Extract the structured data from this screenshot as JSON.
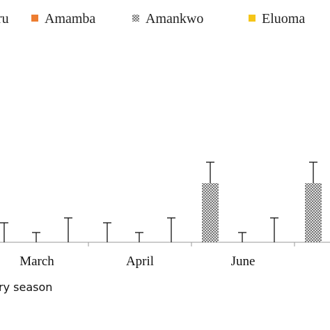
{
  "chart_data": {
    "type": "bar",
    "x_label": "ry season",
    "categories": [
      "March",
      "April",
      "June",
      null
    ],
    "ylim": [
      0,
      11.5
    ],
    "series": [
      {
        "name": "ru",
        "values": [
          null,
          null,
          null,
          null
        ],
        "errors": [
          null,
          null,
          null,
          null
        ]
      },
      {
        "name": "Amamba",
        "color": "#ed7d31",
        "values": [
          0,
          0,
          0,
          null
        ],
        "errors": [
          3.5,
          3.5,
          3.5,
          null
        ]
      },
      {
        "name": "Amankwo",
        "color": "#9a9a9a",
        "pattern": "hatch",
        "values": [
          0,
          0,
          8.5,
          8.5
        ],
        "errors": [
          2.8,
          2.8,
          3,
          3
        ]
      },
      {
        "name": "Eluoma",
        "color": "#f5c518",
        "values": [
          0,
          0,
          0,
          null
        ],
        "errors": [
          1.4,
          1.4,
          1.4,
          null
        ]
      }
    ]
  }
}
